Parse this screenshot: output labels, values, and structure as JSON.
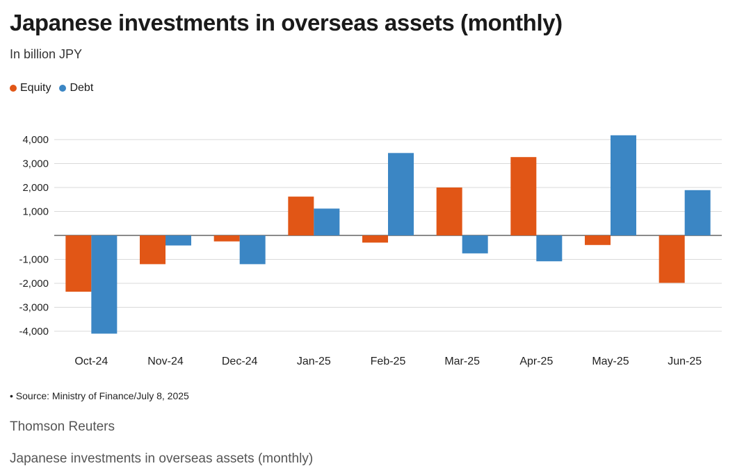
{
  "chart_data": {
    "type": "bar",
    "title": "Japanese investments in overseas assets (monthly)",
    "subtitle": "In billion JPY",
    "categories": [
      "Oct-24",
      "Nov-24",
      "Dec-24",
      "Jan-25",
      "Feb-25",
      "Mar-25",
      "Apr-25",
      "May-25",
      "Jun-25"
    ],
    "series": [
      {
        "name": "Equity",
        "color": "#e15616",
        "values": [
          -2350,
          -1200,
          -250,
          1620,
          -300,
          2000,
          3270,
          -400,
          -1980
        ]
      },
      {
        "name": "Debt",
        "color": "#3b86c4",
        "values": [
          -4100,
          -420,
          -1200,
          1120,
          3440,
          -750,
          -1080,
          4180,
          1890
        ]
      }
    ],
    "ylim": [
      -4000,
      4000
    ],
    "yticks": [
      4000,
      3000,
      2000,
      1000,
      0,
      -1000,
      -2000,
      -3000,
      -4000
    ],
    "ytick_labels": [
      "4,000",
      "3,000",
      "2,000",
      "1,000",
      "",
      "-1,000",
      "-2,000",
      "-3,000",
      "-4,000"
    ],
    "grid": true,
    "legend_position": "top-left"
  },
  "source": "• Source: Ministry of Finance/July 8, 2025",
  "footer": {
    "credit": "Thomson Reuters",
    "caption": "Japanese investments in overseas assets (monthly)"
  }
}
